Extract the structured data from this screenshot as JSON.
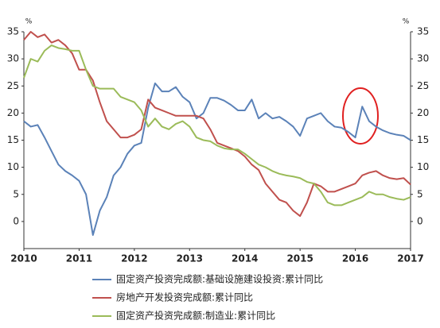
{
  "chart_data": {
    "type": "line",
    "y_unit": "%",
    "y2_unit": "%",
    "x": [
      2010,
      2010.125,
      2010.25,
      2010.375,
      2010.5,
      2010.625,
      2010.75,
      2010.875,
      2011,
      2011.125,
      2011.25,
      2011.375,
      2011.5,
      2011.625,
      2011.75,
      2011.875,
      2012,
      2012.125,
      2012.25,
      2012.375,
      2012.5,
      2012.625,
      2012.75,
      2012.875,
      2013,
      2013.125,
      2013.25,
      2013.375,
      2013.5,
      2013.625,
      2013.75,
      2013.875,
      2014,
      2014.125,
      2014.25,
      2014.375,
      2014.5,
      2014.625,
      2014.75,
      2014.875,
      2015,
      2015.125,
      2015.25,
      2015.375,
      2015.5,
      2015.625,
      2015.75,
      2015.875,
      2016,
      2016.125,
      2016.25,
      2016.375,
      2016.5,
      2016.625,
      2016.75,
      2016.875,
      2017
    ],
    "series": [
      {
        "name": "固定资产投资完成额:基础设施建设投资:累计同比",
        "color": "#5b82b8",
        "values": [
          18.5,
          17.5,
          17.8,
          15.5,
          13,
          10.5,
          9.3,
          8.5,
          7.5,
          5,
          -2.5,
          2,
          4.5,
          8.5,
          10,
          12.5,
          14,
          14.5,
          21,
          25.5,
          24,
          24,
          24.8,
          23,
          22,
          19,
          20,
          22.8,
          22.8,
          22.3,
          21.5,
          20.5,
          20.5,
          22.5,
          19,
          20,
          19,
          19.3,
          18.5,
          17.5,
          15.8,
          19,
          19.5,
          20,
          18.5,
          17.5,
          17.3,
          16.5,
          15.5,
          21.2,
          18.5,
          17.5,
          16.8,
          16.3,
          16,
          15.8,
          15
        ]
      },
      {
        "name": "房地产开发投资完成额:累计同比",
        "color": "#c0504d",
        "values": [
          33.5,
          35,
          34,
          34.5,
          33,
          33.5,
          32.5,
          31,
          28,
          28,
          26,
          22,
          18.5,
          17,
          15.5,
          15.5,
          16,
          17,
          22.5,
          21,
          20.5,
          20,
          19.5,
          19.5,
          19.5,
          19.5,
          19,
          17,
          14.5,
          14,
          13.5,
          13,
          12,
          10.5,
          9.5,
          7,
          5.5,
          4,
          3.5,
          2,
          1,
          3.5,
          7,
          6.5,
          5.5,
          5.5,
          6,
          6.5,
          7,
          8.5,
          9,
          9.3,
          8.5,
          8,
          7.8,
          8,
          6.8
        ]
      },
      {
        "name": "固定资产投资完成额:制造业:累计同比",
        "color": "#9bbb59",
        "values": [
          26.5,
          30,
          29.5,
          31.5,
          32.5,
          32,
          31.8,
          31.5,
          31.5,
          28,
          25,
          24.5,
          24.5,
          24.5,
          23,
          22.5,
          22,
          20.5,
          17.5,
          19,
          17.5,
          17,
          18,
          18.5,
          17.5,
          15.5,
          15,
          14.8,
          14,
          13.5,
          13.3,
          13.3,
          12.5,
          11.5,
          10.5,
          10,
          9.3,
          8.8,
          8.5,
          8.3,
          8,
          7.3,
          7,
          5.5,
          3.5,
          3,
          3,
          3.5,
          4,
          4.5,
          5.5,
          5,
          5,
          4.5,
          4.2,
          4,
          4.5
        ]
      }
    ],
    "xlim": [
      2010,
      2017
    ],
    "xticks": [
      2010,
      2011,
      2012,
      2013,
      2014,
      2015,
      2016,
      2017
    ],
    "ylim": [
      -5,
      35
    ],
    "yticks": [
      0,
      5,
      10,
      15,
      20,
      25,
      30,
      35
    ],
    "y2lim": [
      -5,
      35
    ],
    "y2ticks": [
      0,
      5,
      10,
      15,
      20,
      25,
      30,
      35
    ],
    "grid": false,
    "legend": "bottom"
  }
}
